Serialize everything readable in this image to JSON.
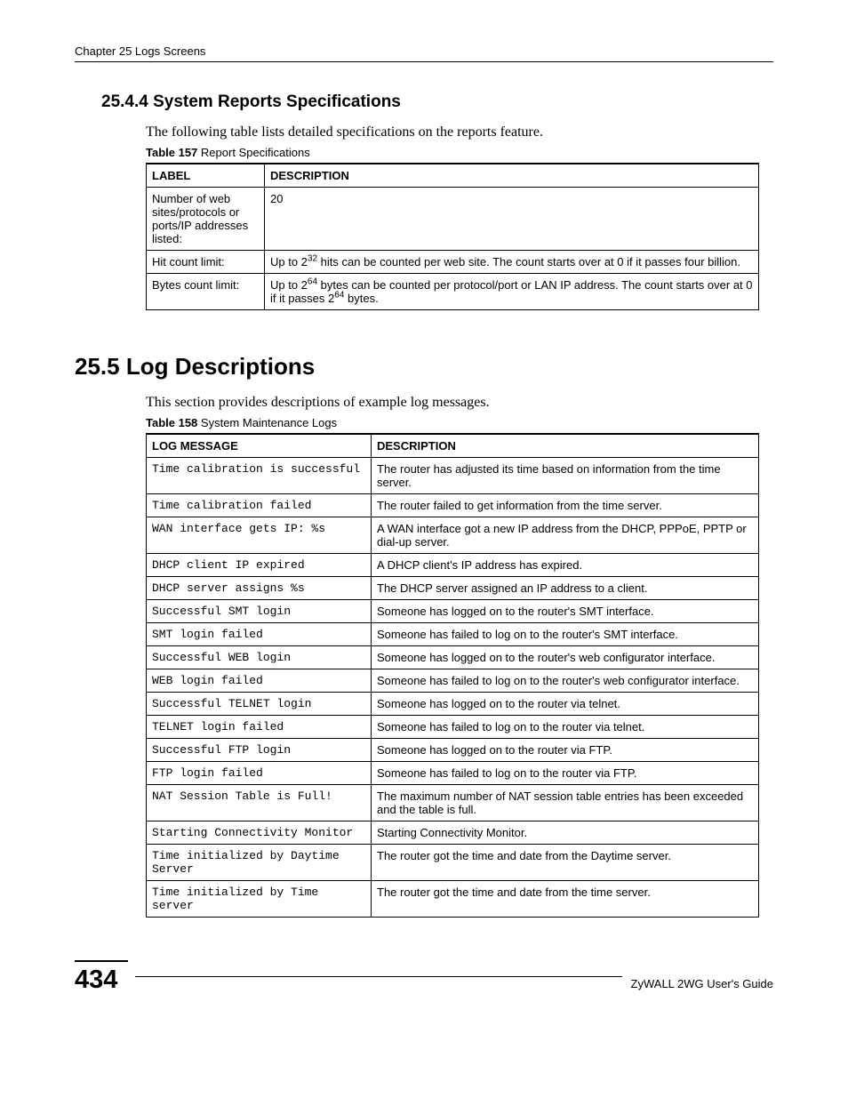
{
  "header": {
    "running_head": "Chapter 25 Logs Screens"
  },
  "section1": {
    "heading": "25.4.4  System Reports Specifications",
    "intro": "The following table lists detailed specifications on the reports feature.",
    "table_caption_bold": "Table 157",
    "table_caption_rest": "   Report Specifications",
    "col1": "LABEL",
    "col2": "DESCRIPTION",
    "rows": [
      {
        "label": "Number of web sites/protocols or ports/IP addresses listed:",
        "desc_plain": "20"
      },
      {
        "label": "Hit count limit:",
        "desc_parts": [
          "Up to 2",
          "32",
          " hits can be counted per web site. The count starts over at 0 if it passes four billion."
        ]
      },
      {
        "label": "Bytes count limit:",
        "desc_parts2": [
          "Up to 2",
          "64",
          " bytes can be counted per protocol/port or LAN IP address. The count starts over at 0 if it passes 2",
          "64",
          " bytes."
        ]
      }
    ]
  },
  "section2": {
    "heading": "25.5  Log Descriptions",
    "intro": "This section provides descriptions of example log messages.",
    "table_caption_bold": "Table 158",
    "table_caption_rest": "   System Maintenance Logs",
    "col1": "LOG MESSAGE",
    "col2": "DESCRIPTION",
    "rows": [
      {
        "msg": "Time calibration is successful",
        "desc": "The router has adjusted its time based on information from the time server."
      },
      {
        "msg": "Time calibration failed",
        "desc": "The router failed to get information from the time server."
      },
      {
        "msg": "WAN interface gets IP: %s",
        "desc": "A WAN interface got a new IP address from the DHCP, PPPoE, PPTP or dial-up server."
      },
      {
        "msg": "DHCP client IP expired",
        "desc": "A DHCP client's IP address has expired."
      },
      {
        "msg": "DHCP server assigns %s",
        "desc": "The DHCP server assigned an IP address to a client."
      },
      {
        "msg": "Successful SMT login",
        "desc": "Someone has logged on to the router's SMT interface."
      },
      {
        "msg": "SMT login failed",
        "desc": "Someone has failed to log on to the router's SMT interface."
      },
      {
        "msg": "Successful WEB login",
        "desc": "Someone has logged on to the router's web configurator interface."
      },
      {
        "msg": "WEB login failed",
        "desc": "Someone has failed to log on to the router's web configurator interface."
      },
      {
        "msg": "Successful TELNET login",
        "desc": "Someone has logged on to the router via telnet."
      },
      {
        "msg": "TELNET login failed",
        "desc": "Someone has failed to log on to the router via telnet."
      },
      {
        "msg": "Successful FTP login",
        "desc": "Someone has logged on to the router via FTP."
      },
      {
        "msg": "FTP login failed",
        "desc": "Someone has failed to log on to the router via FTP."
      },
      {
        "msg": "NAT Session Table is Full!",
        "desc": "The maximum number of NAT session table entries has been exceeded and the table is full."
      },
      {
        "msg": "Starting Connectivity Monitor",
        "desc": "Starting Connectivity Monitor."
      },
      {
        "msg": "Time initialized by Daytime Server",
        "desc": "The router got the time and date from the Daytime server."
      },
      {
        "msg": "Time initialized by Time server",
        "desc": "The router got the time and date from the time server."
      }
    ]
  },
  "footer": {
    "page_number": "434",
    "guide": "ZyWALL 2WG User's Guide"
  }
}
